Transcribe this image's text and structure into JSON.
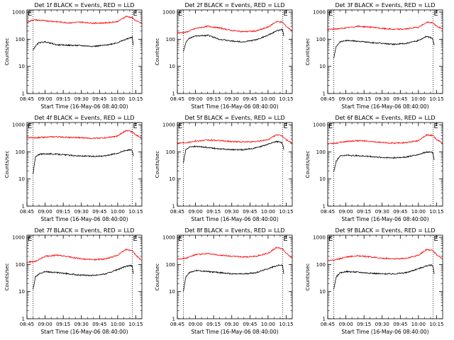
{
  "colors": {
    "background": "#ffffff",
    "events": "#000000",
    "lld": "#ff0000",
    "axes": "#000000"
  },
  "shared": {
    "ylabel": "Counts/sec",
    "xlabel": "Start Time (16-May-06 08:40:00)",
    "xticks": [
      "08:45",
      "09:00",
      "09:15",
      "09:30",
      "09:45",
      "10:00",
      "10:15"
    ],
    "yticks": [
      "1",
      "10",
      "100",
      "1000"
    ],
    "flags": [
      "E",
      "E"
    ],
    "x_range_min": [
      45,
      140
    ],
    "y_range_log10": [
      0,
      3.08
    ],
    "dotted_vlines_min": [
      50,
      132
    ]
  },
  "chart_data": [
    {
      "type": "line",
      "title": "Det 1f BLACK = Events, RED = LLD",
      "series": [
        {
          "name": "LLD",
          "color": "#ff0000",
          "x": [
            45,
            50,
            60,
            70,
            80,
            90,
            100,
            110,
            120,
            127,
            132,
            135,
            140
          ],
          "y": [
            420,
            520,
            480,
            440,
            400,
            430,
            390,
            400,
            450,
            700,
            620,
            480,
            380
          ]
        },
        {
          "name": "Events",
          "color": "#000000",
          "x": [
            50,
            52,
            55,
            60,
            70,
            80,
            90,
            100,
            110,
            120,
            127,
            131,
            132,
            133
          ],
          "y": [
            40,
            55,
            75,
            80,
            62,
            60,
            58,
            55,
            60,
            75,
            100,
            115,
            120,
            60
          ]
        }
      ]
    },
    {
      "type": "line",
      "title": "Det 2f BLACK = Events, RED = LLD",
      "series": [
        {
          "name": "LLD",
          "color": "#ff0000",
          "x": [
            45,
            52,
            60,
            70,
            80,
            90,
            100,
            110,
            120,
            127,
            132,
            135,
            140
          ],
          "y": [
            170,
            180,
            250,
            300,
            260,
            210,
            190,
            200,
            280,
            450,
            420,
            300,
            200
          ]
        },
        {
          "name": "Events",
          "color": "#000000",
          "x": [
            50,
            52,
            55,
            60,
            70,
            80,
            90,
            100,
            110,
            120,
            127,
            131,
            132,
            133
          ],
          "y": [
            35,
            75,
            110,
            130,
            140,
            100,
            85,
            80,
            95,
            140,
            200,
            230,
            220,
            130
          ]
        }
      ]
    },
    {
      "type": "line",
      "title": "Det 3f BLACK = Events, RED = LLD",
      "series": [
        {
          "name": "LLD",
          "color": "#ff0000",
          "x": [
            45,
            52,
            60,
            70,
            80,
            90,
            100,
            110,
            120,
            127,
            132,
            135,
            140
          ],
          "y": [
            230,
            240,
            260,
            300,
            280,
            250,
            230,
            240,
            280,
            420,
            400,
            300,
            240
          ]
        },
        {
          "name": "Events",
          "color": "#000000",
          "x": [
            50,
            52,
            55,
            60,
            70,
            80,
            90,
            100,
            110,
            120,
            127,
            131,
            132,
            133
          ],
          "y": [
            20,
            55,
            80,
            90,
            85,
            75,
            70,
            65,
            70,
            90,
            130,
            110,
            100,
            60
          ]
        }
      ]
    },
    {
      "type": "line",
      "title": "Det 4f BLACK = Events, RED = LLD",
      "series": [
        {
          "name": "LLD",
          "color": "#ff0000",
          "x": [
            45,
            52,
            60,
            70,
            80,
            90,
            100,
            110,
            120,
            127,
            132,
            135,
            140
          ],
          "y": [
            340,
            330,
            350,
            360,
            340,
            330,
            320,
            330,
            380,
            620,
            550,
            420,
            320
          ]
        },
        {
          "name": "Events",
          "color": "#000000",
          "x": [
            50,
            52,
            55,
            60,
            70,
            80,
            90,
            100,
            110,
            120,
            127,
            131,
            132,
            133
          ],
          "y": [
            15,
            65,
            80,
            85,
            82,
            75,
            70,
            68,
            72,
            90,
            115,
            120,
            115,
            70
          ]
        }
      ]
    },
    {
      "type": "line",
      "title": "Det 5f BLACK = Events, RED = LLD",
      "series": [
        {
          "name": "LLD",
          "color": "#ff0000",
          "x": [
            45,
            52,
            60,
            70,
            80,
            90,
            100,
            110,
            120,
            127,
            132,
            135,
            140
          ],
          "y": [
            210,
            220,
            250,
            270,
            260,
            240,
            230,
            240,
            280,
            430,
            380,
            280,
            210
          ]
        },
        {
          "name": "Events",
          "color": "#000000",
          "x": [
            50,
            52,
            55,
            60,
            70,
            80,
            90,
            100,
            110,
            120,
            127,
            131,
            132,
            133
          ],
          "y": [
            40,
            120,
            150,
            160,
            145,
            130,
            120,
            120,
            140,
            190,
            240,
            220,
            200,
            120
          ]
        }
      ]
    },
    {
      "type": "line",
      "title": "Det 6f BLACK = Events, RED = LLD",
      "series": [
        {
          "name": "LLD",
          "color": "#ff0000",
          "x": [
            45,
            52,
            60,
            70,
            80,
            90,
            100,
            110,
            120,
            127,
            132,
            135,
            140
          ],
          "y": [
            200,
            210,
            240,
            260,
            240,
            220,
            210,
            220,
            260,
            420,
            400,
            280,
            210
          ]
        },
        {
          "name": "Events",
          "color": "#000000",
          "x": [
            50,
            52,
            55,
            60,
            70,
            80,
            90,
            100,
            110,
            120,
            127,
            131,
            132,
            133
          ],
          "y": [
            18,
            45,
            70,
            75,
            72,
            68,
            62,
            60,
            65,
            80,
            100,
            95,
            90,
            50
          ]
        }
      ]
    },
    {
      "type": "line",
      "title": "Det 7f BLACK = Events, RED = LLD",
      "series": [
        {
          "name": "LLD",
          "color": "#ff0000",
          "x": [
            45,
            52,
            60,
            70,
            80,
            90,
            100,
            110,
            120,
            127,
            132,
            135,
            140
          ],
          "y": [
            120,
            130,
            200,
            220,
            190,
            160,
            150,
            160,
            220,
            360,
            320,
            220,
            140
          ]
        },
        {
          "name": "Events",
          "color": "#000000",
          "x": [
            50,
            52,
            55,
            60,
            70,
            80,
            90,
            100,
            110,
            120,
            127,
            131,
            132,
            133
          ],
          "y": [
            12,
            35,
            45,
            55,
            50,
            45,
            40,
            40,
            45,
            65,
            85,
            90,
            85,
            45
          ]
        }
      ]
    },
    {
      "type": "line",
      "title": "Det 8f BLACK = Events, RED = LLD",
      "series": [
        {
          "name": "LLD",
          "color": "#ff0000",
          "x": [
            45,
            52,
            60,
            70,
            80,
            90,
            100,
            110,
            120,
            127,
            132,
            135,
            140
          ],
          "y": [
            160,
            170,
            230,
            250,
            220,
            200,
            190,
            200,
            260,
            420,
            380,
            260,
            170
          ]
        },
        {
          "name": "Events",
          "color": "#000000",
          "x": [
            50,
            52,
            55,
            60,
            70,
            80,
            90,
            100,
            110,
            120,
            127,
            131,
            132,
            133
          ],
          "y": [
            10,
            35,
            50,
            60,
            55,
            50,
            45,
            45,
            50,
            70,
            90,
            95,
            90,
            45
          ]
        }
      ]
    },
    {
      "type": "line",
      "title": "Det 9f BLACK = Events, RED = LLD",
      "series": [
        {
          "name": "LLD",
          "color": "#ff0000",
          "x": [
            45,
            52,
            60,
            70,
            80,
            90,
            100,
            110,
            120,
            127,
            132,
            135,
            140
          ],
          "y": [
            140,
            150,
            190,
            210,
            190,
            170,
            160,
            170,
            220,
            360,
            320,
            230,
            160
          ]
        },
        {
          "name": "Events",
          "color": "#000000",
          "x": [
            50,
            52,
            55,
            60,
            70,
            80,
            90,
            100,
            110,
            120,
            127,
            131,
            132,
            133
          ],
          "y": [
            12,
            35,
            48,
            55,
            52,
            48,
            45,
            45,
            50,
            70,
            90,
            95,
            85,
            45
          ]
        }
      ]
    }
  ]
}
